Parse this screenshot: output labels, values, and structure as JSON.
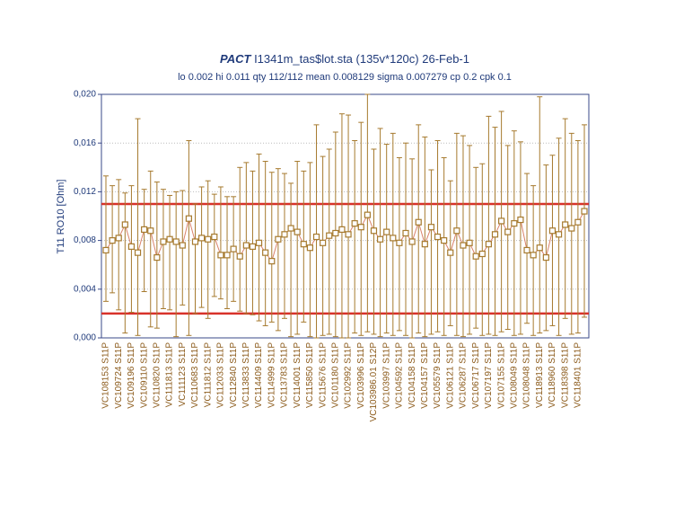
{
  "chart_data": {
    "type": "line",
    "title_emphasis": "PACT",
    "title": "I1341m_tas$lot.sta (135v*120c) 26-Feb-1",
    "subtitle": "lo 0.002 hi 0.011 qty 112/112 mean 0.008129 sigma 0.007279 cp 0.2 cpk 0.1",
    "ylabel": "T11 RO10 [Ohm]",
    "ylim": [
      0,
      0.02
    ],
    "yticks": [
      {
        "value": 0,
        "label": "0,000"
      },
      {
        "value": 0.004,
        "label": "0,004"
      },
      {
        "value": 0.008,
        "label": "0,008"
      },
      {
        "value": 0.012,
        "label": "0,012"
      },
      {
        "value": 0.016,
        "label": "0,016"
      },
      {
        "value": 0.02,
        "label": "0,020"
      }
    ],
    "grid": true,
    "reference_lines": [
      0.011,
      0.002
    ],
    "reference_color": "#d8322a",
    "categories": [
      "VC108153 S11P",
      null,
      "VC109724 S11P",
      null,
      "VC109196 S11P",
      null,
      "VC109110 S11P",
      null,
      "VC110820 S11P",
      null,
      "VC111813 S11P",
      null,
      "VC111123 S11P",
      null,
      "VC110683 S11P",
      null,
      "VC111812 S11P",
      null,
      "VC112033 S11P",
      null,
      "VC112840 S11P",
      null,
      "VC113833 S11P",
      null,
      "VC114409 S11P",
      null,
      "VC114999 S11P",
      null,
      "VC113783 S11P",
      null,
      "VC114001 S11P",
      null,
      "VC115850 S11P",
      null,
      "VC115676 S11P",
      null,
      "VC101180 S11P",
      null,
      "VC102992 S11P",
      null,
      "VC103996 S11P",
      null,
      "VC103986.01 S12P",
      null,
      "VC103997 S11P",
      null,
      "VC104592 S11P",
      null,
      "VC104158 S11P",
      null,
      "VC104157 S11P",
      null,
      "VC105579 S11P",
      null,
      "VC106121 S11P",
      null,
      "VC106287 S11P",
      null,
      "VC106717 S11P",
      null,
      "VC107197 S11P",
      null,
      "VC107155 S11P",
      null,
      "VC108049 S11P",
      null,
      "VC108048 S11P",
      null,
      "VC118913 S11P",
      null,
      "VC118960 S11P",
      null,
      "VC118398 S11P",
      null,
      "VC118401 S11P",
      null
    ],
    "series": [
      {
        "color": "#d9826a",
        "error_color": "#a67a2e",
        "values": [
          0.0072,
          0.008,
          0.0082,
          0.0093,
          0.0075,
          0.007,
          0.0089,
          0.0088,
          0.0066,
          0.0079,
          0.0081,
          0.0079,
          0.0076,
          0.0098,
          0.0079,
          0.0082,
          0.0081,
          0.0083,
          0.0068,
          0.0068,
          0.0073,
          0.0067,
          0.0076,
          0.0075,
          0.0078,
          0.007,
          0.0063,
          0.0081,
          0.0085,
          0.009,
          0.0087,
          0.0077,
          0.0074,
          0.0083,
          0.0078,
          0.0084,
          0.0086,
          0.0089,
          0.0085,
          0.0094,
          0.0091,
          0.0101,
          0.0088,
          0.0081,
          0.0087,
          0.0082,
          0.0078,
          0.0086,
          0.0079,
          0.0095,
          0.0077,
          0.0091,
          0.0083,
          0.008,
          0.007,
          0.0088,
          0.0076,
          0.0078,
          0.0067,
          0.0069,
          0.0077,
          0.0085,
          0.0096,
          0.0087,
          0.0094,
          0.0097,
          0.0072,
          0.0068,
          0.0074,
          0.0066,
          0.0088,
          0.0085,
          0.0093,
          0.009,
          0.0095,
          0.0104
        ],
        "upper": [
          0.0133,
          0.0125,
          0.013,
          0.0119,
          0.0125,
          0.018,
          0.0122,
          0.0137,
          0.0128,
          0.0122,
          0.0117,
          0.012,
          0.0121,
          0.0162,
          0.011,
          0.0124,
          0.0129,
          0.0118,
          0.0124,
          0.0116,
          0.0116,
          0.014,
          0.0144,
          0.0137,
          0.0151,
          0.0145,
          0.0136,
          0.0139,
          0.0135,
          0.0127,
          0.0145,
          0.0137,
          0.0144,
          0.0175,
          0.0149,
          0.0155,
          0.0169,
          0.0184,
          0.0183,
          0.0162,
          0.0177,
          0.02,
          0.0155,
          0.0172,
          0.0159,
          0.0168,
          0.0148,
          0.016,
          0.0147,
          0.0175,
          0.0165,
          0.0138,
          0.0162,
          0.0148,
          0.0129,
          0.0168,
          0.0166,
          0.0158,
          0.014,
          0.0143,
          0.0182,
          0.0173,
          0.0186,
          0.0158,
          0.017,
          0.0161,
          0.0135,
          0.0125,
          0.0198,
          0.0142,
          0.015,
          0.0164,
          0.018,
          0.0168,
          0.0162,
          0.0175
        ],
        "lower": [
          0.003,
          0.0037,
          0.0023,
          0.0004,
          0.0021,
          0.0002,
          0.0038,
          0.0009,
          0.0008,
          0.0024,
          0.0023,
          0.0001,
          0.0027,
          0.0002,
          0.002,
          0.0025,
          0.0016,
          0.0034,
          0.0032,
          0.0024,
          0.003,
          0.0022,
          0.002,
          0.0019,
          0.0014,
          0.001,
          0.0013,
          0.0006,
          0.0016,
          0.0001,
          0.0003,
          0.0013,
          0.0001,
          0.0,
          0.0002,
          0.0003,
          0.0001,
          0.0,
          0.0,
          0.0004,
          0.0002,
          0.0005,
          0.0003,
          0.0001,
          0.0004,
          0.0002,
          0.0006,
          0.0002,
          0.0,
          0.0004,
          0.0001,
          0.0003,
          0.0005,
          0.0002,
          0.001,
          0.0002,
          0.0001,
          0.0003,
          0.0008,
          0.0002,
          0.0003,
          0.0002,
          0.0005,
          0.0007,
          0.0002,
          0.0003,
          0.0012,
          0.0002,
          0.0004,
          0.0006,
          0.001,
          0.0002,
          0.0016,
          0.0003,
          0.0004,
          0.0017
        ]
      }
    ]
  }
}
